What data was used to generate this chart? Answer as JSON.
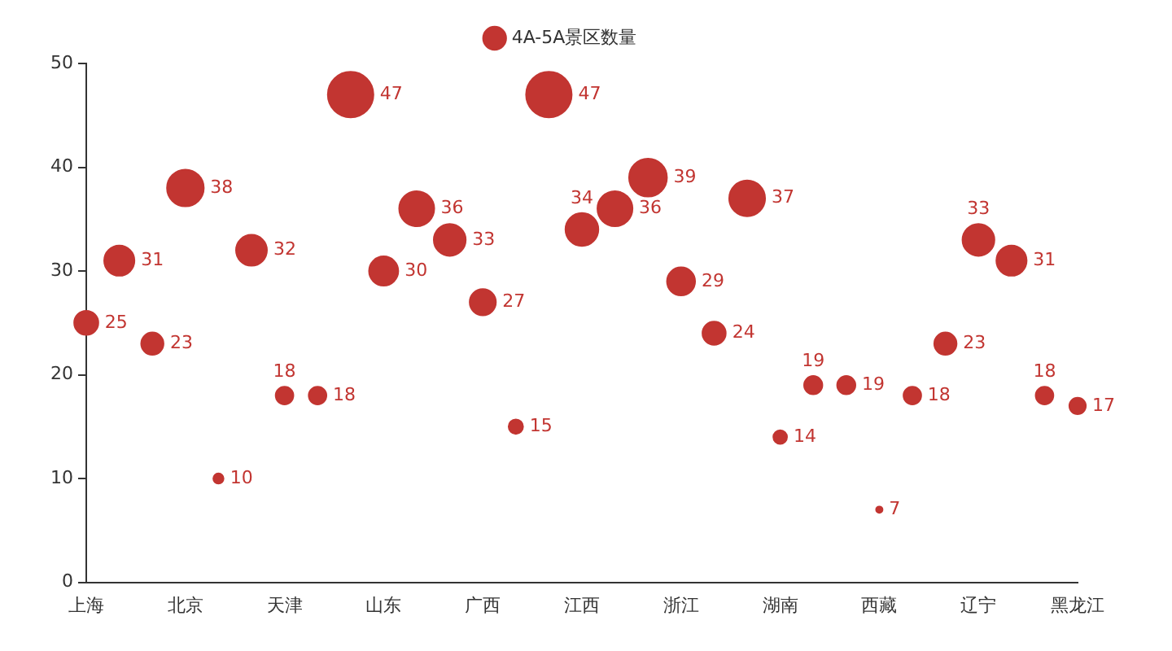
{
  "chart_data": {
    "type": "bubble",
    "categories": [
      "上海",
      null,
      null,
      "北京",
      null,
      null,
      "天津",
      null,
      null,
      "山东",
      null,
      null,
      "广西",
      null,
      null,
      "江西",
      null,
      null,
      "浙江",
      null,
      null,
      "湖南",
      null,
      null,
      "西藏",
      null,
      null,
      "辽宁",
      null,
      null,
      "黑龙江"
    ],
    "series": [
      {
        "name": "4A-5A景区数量",
        "color": "#c23531",
        "values": [
          25,
          31,
          23,
          38,
          10,
          32,
          18,
          18,
          47,
          30,
          36,
          33,
          27,
          15,
          47,
          34,
          36,
          39,
          29,
          24,
          37,
          14,
          19,
          19,
          7,
          18,
          23,
          33,
          31,
          18,
          17
        ],
        "sizes": [
          0.28,
          0.44,
          0.24,
          0.65,
          0.05,
          0.46,
          0.15,
          0.15,
          1,
          0.41,
          0.59,
          0.49,
          0.33,
          0.1,
          1,
          0.52,
          0.59,
          0.69,
          0.38,
          0.26,
          0.62,
          0.09,
          0.16,
          0.16,
          0.02,
          0.15,
          0.24,
          0.49,
          0.44,
          0.15,
          0.13
        ]
      }
    ],
    "ylim": [
      0,
      50
    ],
    "yticks": [
      0,
      10,
      20,
      30,
      40,
      50
    ],
    "data_labels": true,
    "grid": false,
    "legend": "top",
    "marker": "circle"
  }
}
